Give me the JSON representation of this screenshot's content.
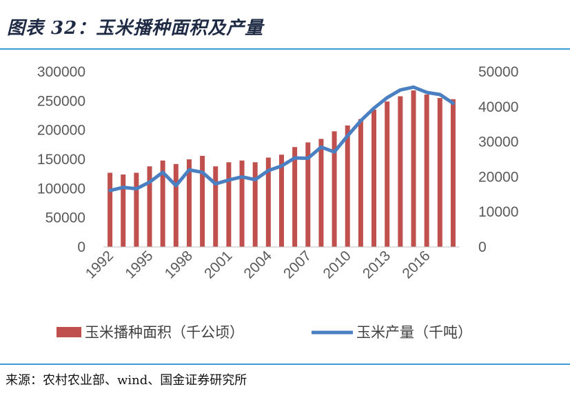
{
  "figure": {
    "title": "图表 32：玉米播种面积及产量",
    "source": "来源：农村农业部、wind、国金证券研究所"
  },
  "chart_data": {
    "type": "bar+line",
    "x": [
      1992,
      1993,
      1994,
      1995,
      1996,
      1997,
      1998,
      1999,
      2000,
      2001,
      2002,
      2003,
      2004,
      2005,
      2006,
      2007,
      2008,
      2009,
      2010,
      2011,
      2012,
      2013,
      2014,
      2015,
      2016,
      2017,
      2018
    ],
    "x_tick_labels": [
      "1992",
      "1995",
      "1998",
      "2001",
      "2004",
      "2007",
      "2010",
      "2013",
      "2016"
    ],
    "series": [
      {
        "name": "玉米播种面积（千公顷）",
        "kind": "bar",
        "axis": "left",
        "color": "#c0504d",
        "values": [
          127000,
          124000,
          127000,
          138000,
          148000,
          142000,
          150000,
          156000,
          138000,
          145000,
          148000,
          145000,
          153000,
          158000,
          171000,
          179000,
          185000,
          198000,
          208000,
          219000,
          235000,
          249000,
          258000,
          268000,
          261000,
          255000,
          253000
        ]
      },
      {
        "name": "玉米产量（千吨）",
        "kind": "line",
        "axis": "right",
        "color": "#4a7fc1",
        "values": [
          16100,
          17000,
          16600,
          18500,
          21300,
          17500,
          22000,
          21300,
          18000,
          19100,
          20000,
          19200,
          21800,
          23100,
          25400,
          25300,
          28500,
          27100,
          31700,
          36000,
          39600,
          42600,
          44800,
          45600,
          44100,
          43500,
          41000
        ]
      }
    ],
    "ylim_left": [
      0,
      300000
    ],
    "yticks_left": [
      "0",
      "50000",
      "100000",
      "150000",
      "200000",
      "250000",
      "300000"
    ],
    "ylim_right": [
      0,
      50000
    ],
    "yticks_right": [
      "0",
      "10000",
      "20000",
      "30000",
      "40000",
      "50000"
    ],
    "legend_position": "bottom",
    "grid": false
  }
}
